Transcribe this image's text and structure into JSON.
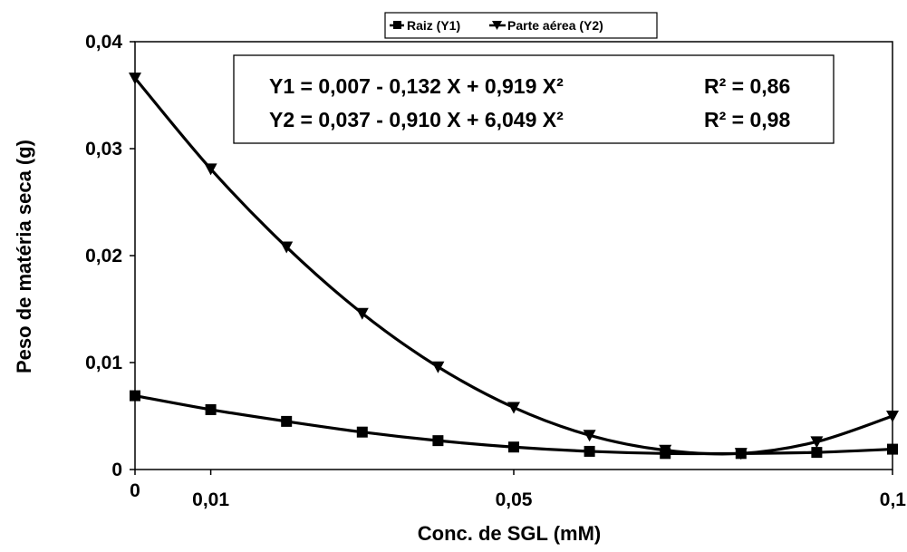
{
  "chart_data": {
    "type": "line",
    "xlabel": "Conc. de SGL (mM)",
    "ylabel": "Peso de matéria seca (g)",
    "xlim": [
      0,
      0.1
    ],
    "ylim": [
      0,
      0.04
    ],
    "x_ticks": [
      {
        "value": 0,
        "label": "0"
      },
      {
        "value": 0.01,
        "label": "0,01"
      },
      {
        "value": 0.05,
        "label": "0,05"
      },
      {
        "value": 0.1,
        "label": "0,1"
      }
    ],
    "y_ticks": [
      {
        "value": 0,
        "label": "0"
      },
      {
        "value": 0.01,
        "label": "0,01"
      },
      {
        "value": 0.02,
        "label": "0,02"
      },
      {
        "value": 0.03,
        "label": "0,03"
      },
      {
        "value": 0.04,
        "label": "0,04"
      }
    ],
    "grid": false,
    "legend_position": "top-center",
    "series": [
      {
        "name": "Raiz (Y1)",
        "marker": "square",
        "x": [
          0,
          0.01,
          0.02,
          0.03,
          0.04,
          0.05,
          0.06,
          0.07,
          0.08,
          0.09,
          0.1
        ],
        "y": [
          0.0069,
          0.0056,
          0.0045,
          0.0035,
          0.0027,
          0.0021,
          0.0017,
          0.0015,
          0.0015,
          0.0016,
          0.0019
        ]
      },
      {
        "name": "Parte aérea (Y2)",
        "marker": "triangle-down",
        "x": [
          0,
          0.01,
          0.02,
          0.03,
          0.04,
          0.05,
          0.06,
          0.07,
          0.08,
          0.09,
          0.1
        ],
        "y": [
          0.0366,
          0.0281,
          0.0208,
          0.0146,
          0.0096,
          0.0058,
          0.0032,
          0.0018,
          0.0015,
          0.0026,
          0.005
        ]
      }
    ],
    "equations": [
      {
        "equation": "Y1 = 0,007 - 0,132 X + 0,919 X²",
        "r2": "R² = 0,86"
      },
      {
        "equation": "Y2 = 0,037 - 0,910 X + 6,049 X²",
        "r2": "R² = 0,98"
      }
    ]
  }
}
